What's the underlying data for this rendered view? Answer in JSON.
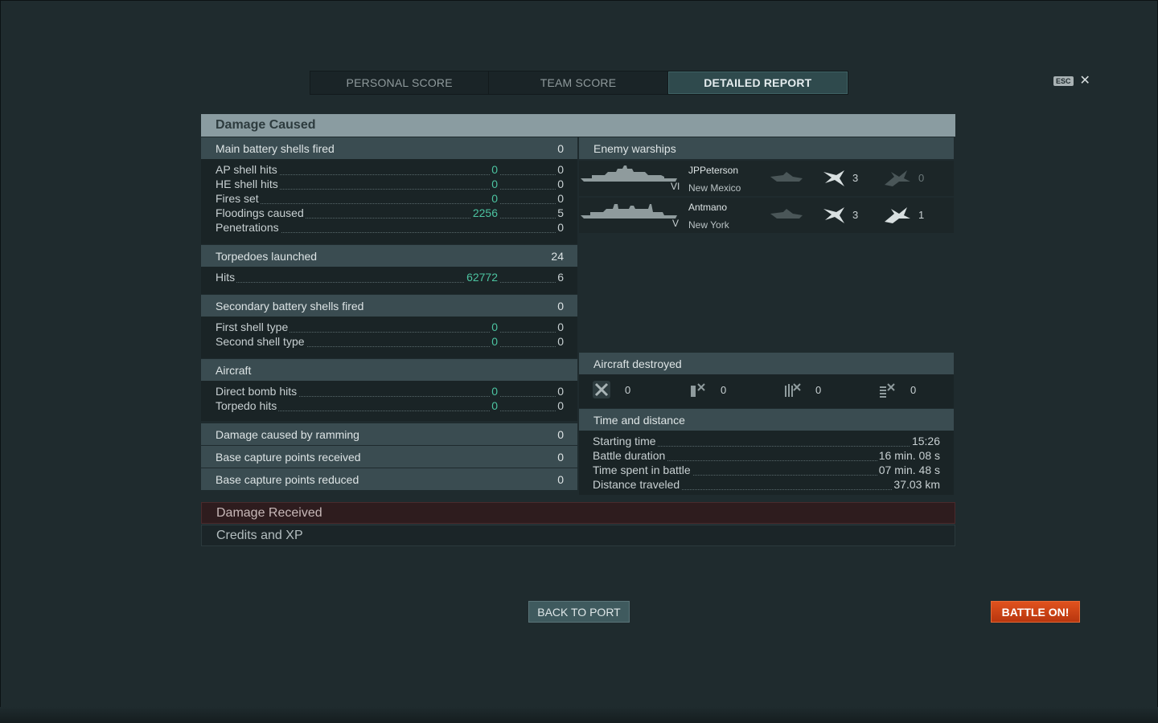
{
  "tabs": [
    {
      "label": "PERSONAL SCORE"
    },
    {
      "label": "TEAM SCORE"
    },
    {
      "label": "DETAILED REPORT"
    }
  ],
  "esc": {
    "badge": "ESC",
    "close": "✕"
  },
  "damage_caused": {
    "title": "Damage Caused",
    "main_battery": {
      "label": "Main battery shells fired",
      "count": "0",
      "rows": [
        {
          "label": "AP shell hits",
          "damage": "0",
          "count": "0"
        },
        {
          "label": "HE shell hits",
          "damage": "0",
          "count": "0"
        },
        {
          "label": "Fires set",
          "damage": "0",
          "count": "0"
        },
        {
          "label": "Floodings caused",
          "damage": "2256",
          "count": "5"
        },
        {
          "label": "Penetrations",
          "damage": "",
          "count": "0"
        }
      ]
    },
    "torpedoes": {
      "label": "Torpedoes launched",
      "count": "24",
      "rows": [
        {
          "label": "Hits",
          "damage": "62772",
          "count": "6"
        }
      ]
    },
    "secondary": {
      "label": "Secondary battery shells fired",
      "count": "0",
      "rows": [
        {
          "label": "First shell type",
          "damage": "0",
          "count": "0"
        },
        {
          "label": "Second shell type",
          "damage": "0",
          "count": "0"
        }
      ]
    },
    "aircraft": {
      "label": "Aircraft",
      "rows": [
        {
          "label": "Direct bomb hits",
          "damage": "0",
          "count": "0"
        },
        {
          "label": "Torpedo hits",
          "damage": "0",
          "count": "0"
        }
      ]
    },
    "ramming": {
      "label": "Damage caused by ramming",
      "count": "0"
    },
    "capture_received": {
      "label": "Base capture points received",
      "count": "0"
    },
    "capture_reduced": {
      "label": "Base capture points reduced",
      "count": "0"
    }
  },
  "enemy_warships": {
    "label": "Enemy warships",
    "ships": [
      {
        "player": "JPPeterson",
        "ship": "New Mexico",
        "tier": "VI",
        "spotted_icon": "ship-spotted-icon",
        "hits_icon": "torpedo-hit-icon",
        "hits": "3",
        "destroyed_icon": "ship-destroyed-icon",
        "destroyed": "0"
      },
      {
        "player": "Antmano",
        "ship": "New York",
        "tier": "V",
        "spotted_icon": "ship-spotted-icon",
        "hits_icon": "torpedo-hit-icon",
        "hits": "3",
        "destroyed_icon": "ship-destroyed-icon",
        "destroyed": "1"
      }
    ]
  },
  "aircraft_destroyed": {
    "label": "Aircraft destroyed",
    "items": [
      {
        "icon": "fighter-icon",
        "value": "0"
      },
      {
        "icon": "torpedo-bomber-icon",
        "value": "0"
      },
      {
        "icon": "dive-bomber-icon",
        "value": "0"
      },
      {
        "icon": "spotter-plane-icon",
        "value": "0"
      }
    ]
  },
  "time_distance": {
    "label": "Time and distance",
    "rows": [
      {
        "label": "Starting time",
        "value": "15:26"
      },
      {
        "label": "Battle duration",
        "value": "16 min. 08 s"
      },
      {
        "label": "Time spent in battle",
        "value": "07 min. 48 s"
      },
      {
        "label": "Distance traveled",
        "value": "37.03 km"
      }
    ]
  },
  "damage_received": {
    "label": "Damage Received"
  },
  "credits_xp": {
    "label": "Credits and XP"
  },
  "buttons": {
    "back_to_port": "BACK TO PORT",
    "battle_on": "BATTLE ON!"
  },
  "colors": {
    "accent_damage": "#4cc3a0",
    "battle_button": "#d24818",
    "section_header": "#8a9ca1",
    "damage_received_bar": "#2e1c1e"
  }
}
